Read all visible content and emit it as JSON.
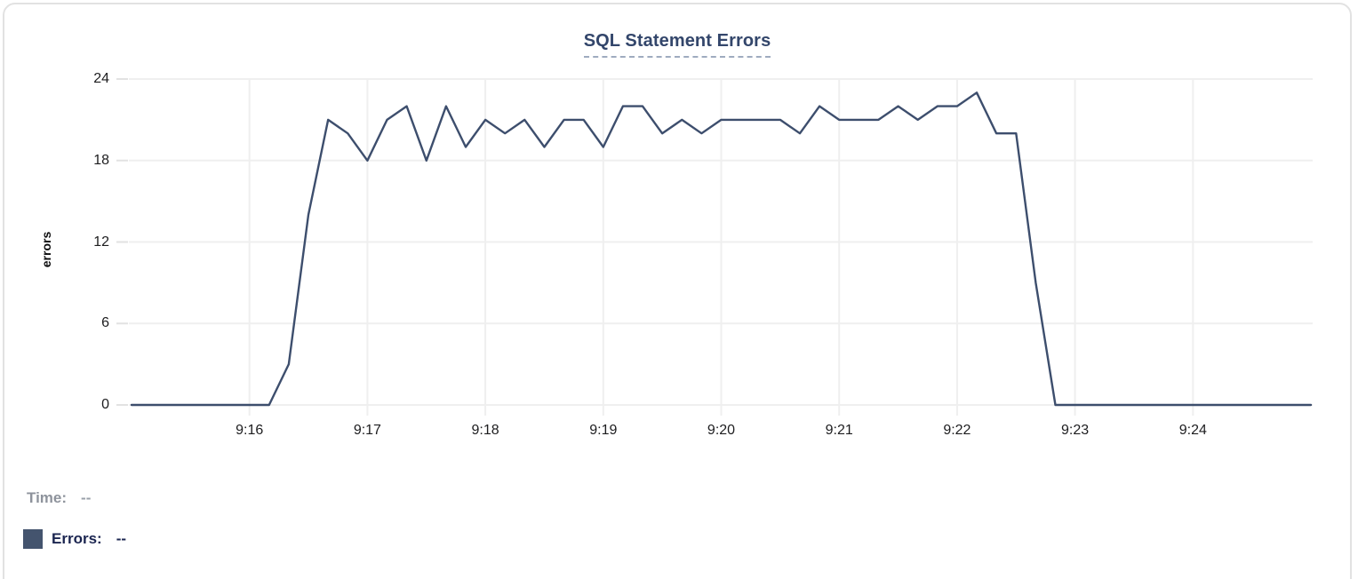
{
  "card": {
    "title": "SQL Statement Errors"
  },
  "chart": {
    "y_axis_label": "errors",
    "y_ticks": [
      24,
      18,
      12,
      6,
      0
    ],
    "x_ticks": [
      "9:16",
      "9:17",
      "9:18",
      "9:19",
      "9:20",
      "9:21",
      "9:22",
      "9:23",
      "9:24"
    ]
  },
  "footer": {
    "time_label": "Time:",
    "time_value": "--",
    "errors_label": "Errors:",
    "errors_value": "--"
  },
  "colors": {
    "line": "#3d4e6d",
    "legend_swatch": "#44546e",
    "title": "#33466b",
    "title_underline": "#9fabbf",
    "gridline": "#efefef",
    "tick_stub": "#e2e2e2",
    "axis_text": "#1d1d1f",
    "time_label_gray": "#8e939c",
    "errors_label_navy": "#1b2550",
    "card_border": "#e2e2e2"
  },
  "chart_data": {
    "type": "line",
    "title": "SQL Statement Errors",
    "xlabel": "",
    "ylabel": "errors",
    "ylim": [
      0,
      24
    ],
    "grid": true,
    "legend_position": "bottom-left",
    "interval_seconds": 10,
    "x_range": [
      "9:15:00",
      "9:25:00"
    ],
    "x": [
      "9:15:00",
      "9:15:10",
      "9:15:20",
      "9:15:30",
      "9:15:40",
      "9:15:50",
      "9:16:00",
      "9:16:10",
      "9:16:20",
      "9:16:30",
      "9:16:40",
      "9:16:50",
      "9:17:00",
      "9:17:10",
      "9:17:20",
      "9:17:30",
      "9:17:40",
      "9:17:50",
      "9:18:00",
      "9:18:10",
      "9:18:20",
      "9:18:30",
      "9:18:40",
      "9:18:50",
      "9:19:00",
      "9:19:10",
      "9:19:20",
      "9:19:30",
      "9:19:40",
      "9:19:50",
      "9:20:00",
      "9:20:10",
      "9:20:20",
      "9:20:30",
      "9:20:40",
      "9:20:50",
      "9:21:00",
      "9:21:10",
      "9:21:20",
      "9:21:30",
      "9:21:40",
      "9:21:50",
      "9:22:00",
      "9:22:10",
      "9:22:20",
      "9:22:30",
      "9:22:40",
      "9:22:50",
      "9:23:00",
      "9:23:10",
      "9:23:20",
      "9:23:30",
      "9:23:40",
      "9:23:50",
      "9:24:00",
      "9:24:10",
      "9:24:20",
      "9:24:30",
      "9:24:40",
      "9:24:50",
      "9:25:00"
    ],
    "series": [
      {
        "name": "Errors",
        "values": [
          0,
          0,
          0,
          0,
          0,
          0,
          0,
          0,
          3,
          14,
          21,
          20,
          18,
          21,
          22,
          18,
          22,
          19,
          21,
          20,
          21,
          19,
          21,
          21,
          19,
          22,
          22,
          20,
          21,
          20,
          21,
          21,
          21,
          21,
          20,
          22,
          21,
          21,
          21,
          22,
          21,
          22,
          22,
          23,
          20,
          20,
          9,
          0,
          0,
          0,
          0,
          0,
          0,
          0,
          0,
          0,
          0,
          0,
          0,
          0,
          0
        ]
      }
    ]
  }
}
